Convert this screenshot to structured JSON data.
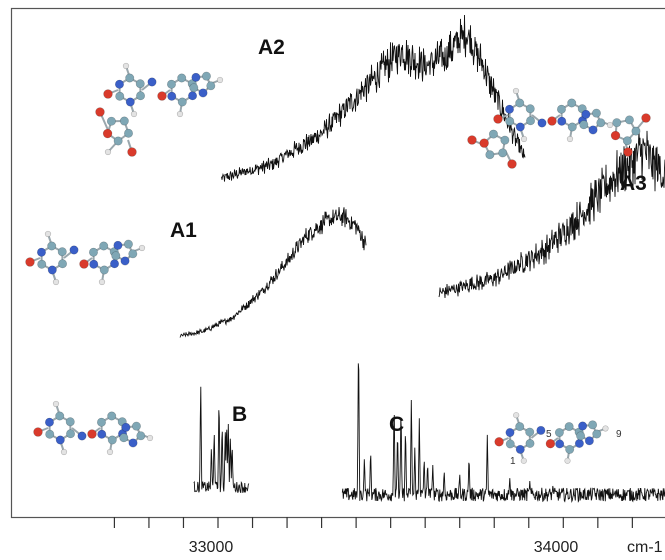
{
  "chart_data": {
    "type": "line",
    "title": "",
    "xlabel": "cm-1",
    "ylabel": "",
    "x_unit": "cm-1",
    "xlim": [
      32620,
      34490
    ],
    "x_ticks": [
      32700,
      32800,
      32900,
      33000,
      33100,
      33200,
      33300,
      33400,
      33500,
      33600,
      33700,
      33800,
      33900,
      34000,
      34100,
      34200,
      34300,
      34400
    ],
    "x_tick_labels": [
      {
        "value": 33000,
        "text": "33000"
      },
      {
        "value": 34000,
        "text": "34000"
      }
    ],
    "grid": false,
    "legend": "none",
    "series": [
      {
        "label": "A2",
        "kind": "broad",
        "x_start": 33010,
        "x_end": 33890,
        "profile_x": [
          33010,
          33150,
          33300,
          33420,
          33530,
          33600,
          33660,
          33720,
          33760,
          33800,
          33850,
          33890
        ],
        "profile_y": [
          0.03,
          0.12,
          0.33,
          0.62,
          0.88,
          0.78,
          0.85,
          1.0,
          0.82,
          0.6,
          0.35,
          0.15
        ],
        "noise": 0.12
      },
      {
        "label": "A1",
        "kind": "broad",
        "x_start": 32890,
        "x_end": 33430,
        "profile_x": [
          32890,
          32960,
          33040,
          33130,
          33200,
          33260,
          33310,
          33360,
          33400,
          33430
        ],
        "profile_y": [
          0.0,
          0.04,
          0.15,
          0.38,
          0.62,
          0.85,
          0.95,
          1.0,
          0.92,
          0.75
        ],
        "noise": 0.07
      },
      {
        "label": "A3",
        "kind": "broad",
        "x_start": 33640,
        "x_end": 34490,
        "profile_x": [
          33640,
          33800,
          33950,
          34050,
          34150,
          34230,
          34320,
          34420,
          34490
        ],
        "profile_y": [
          0.02,
          0.12,
          0.32,
          0.55,
          0.82,
          1.0,
          0.75,
          0.35,
          0.12
        ],
        "noise": 0.16
      },
      {
        "label": "B",
        "kind": "sharp",
        "x_start": 32930,
        "x_end": 33090,
        "peaks": [
          {
            "x": 32950,
            "y": 1.0
          },
          {
            "x": 32981,
            "y": 0.4
          },
          {
            "x": 32989,
            "y": 0.55
          },
          {
            "x": 33003,
            "y": 0.87
          },
          {
            "x": 33012,
            "y": 0.62
          },
          {
            "x": 33021,
            "y": 0.55
          },
          {
            "x": 33025,
            "y": 0.65
          },
          {
            "x": 33030,
            "y": 0.6
          },
          {
            "x": 33036,
            "y": 0.5
          },
          {
            "x": 33041,
            "y": 0.42
          }
        ],
        "noise": 0.05
      },
      {
        "label": "C",
        "kind": "sharp",
        "x_start": 33360,
        "x_end": 34310,
        "peaks": [
          {
            "x": 33407,
            "y": 1.0
          },
          {
            "x": 33424,
            "y": 0.25
          },
          {
            "x": 33442,
            "y": 0.3
          },
          {
            "x": 33510,
            "y": 0.6
          },
          {
            "x": 33520,
            "y": 0.42
          },
          {
            "x": 33530,
            "y": 0.57
          },
          {
            "x": 33543,
            "y": 0.44
          },
          {
            "x": 33560,
            "y": 0.61
          },
          {
            "x": 33570,
            "y": 0.3
          },
          {
            "x": 33583,
            "y": 0.47
          },
          {
            "x": 33597,
            "y": 0.25
          },
          {
            "x": 33607,
            "y": 0.22
          },
          {
            "x": 33622,
            "y": 0.2
          },
          {
            "x": 33655,
            "y": 0.17
          },
          {
            "x": 33700,
            "y": 0.15
          },
          {
            "x": 33727,
            "y": 0.26
          },
          {
            "x": 33780,
            "y": 0.38
          },
          {
            "x": 33845,
            "y": 0.12
          },
          {
            "x": 33903,
            "y": 0.1
          },
          {
            "x": 33970,
            "y": 0.08
          },
          {
            "x": 34040,
            "y": 0.07
          },
          {
            "x": 34090,
            "y": 0.06
          }
        ],
        "noise": 0.04
      }
    ],
    "annotations": [
      "A2",
      "A1",
      "A3",
      "B",
      "C"
    ],
    "molecule_numbers": [
      "5",
      "9",
      "1"
    ]
  },
  "colors": {
    "trace": "#111111",
    "carbon": "#7fa7b5",
    "nitrogen": "#3a5fc8",
    "oxygen": "#d93a2b",
    "hydrogen": "#e3e3e3",
    "bond": "#9aa7ad"
  }
}
